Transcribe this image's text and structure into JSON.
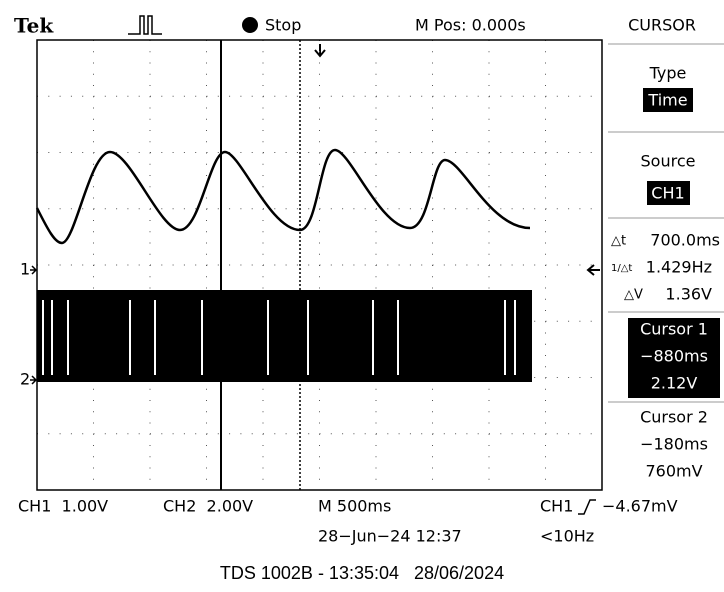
{
  "header": {
    "brand": "Tek",
    "status": "Stop",
    "position": "M Pos: 0.000s"
  },
  "markers": {
    "ch1": "1",
    "ch2": "2"
  },
  "menu": {
    "title": "CURSOR",
    "type_label": "Type",
    "type_value": "Time",
    "source_label": "Source",
    "source_value": "CH1",
    "delta_t": "700.0ms",
    "inverse_delta_t": "1.429Hz",
    "delta_v": "1.36V",
    "cursor1": {
      "label": "Cursor 1",
      "time": "−880ms",
      "volts": "2.12V"
    },
    "cursor2": {
      "label": "Cursor 2",
      "time": "−180ms",
      "volts": "760mV"
    }
  },
  "status_bar": {
    "ch1_scale": "CH1  1.00V",
    "ch2_scale": "CH2  2.00V",
    "timebase": "M 500ms",
    "trigger_source": "CH1",
    "trigger_level": "−4.67mV",
    "date": "28−Jun−24 12:37",
    "frequency": "<10Hz"
  },
  "footer": "TDS 1002B - 13:35:04   28/06/2024"
}
